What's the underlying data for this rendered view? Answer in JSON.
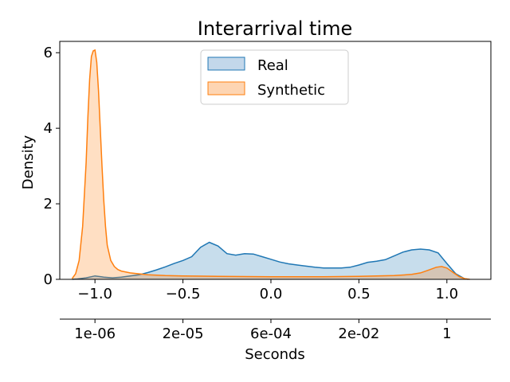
{
  "chart_data": {
    "type": "area",
    "title": "Interarrival time",
    "xlabel": "Seconds",
    "ylabel": "Density",
    "xlim": [
      -1.2,
      1.25
    ],
    "ylim": [
      0,
      6.3
    ],
    "xticks": [
      -1.0,
      -0.5,
      0.0,
      0.5,
      1.0
    ],
    "xtick_labels": [
      "−1.0",
      "−0.5",
      "0.0",
      "0.5",
      "1.0"
    ],
    "yticks": [
      0,
      2,
      4,
      6
    ],
    "ytick_labels": [
      "0",
      "2",
      "4",
      "6"
    ],
    "secondary_xaxis": {
      "position": "bottom",
      "ticks": [
        -1.0,
        -0.5,
        0.0,
        0.5,
        1.0
      ],
      "tick_labels": [
        "1e-06",
        "2e-05",
        "6e-04",
        "2e-02",
        "1"
      ]
    },
    "grid": false,
    "legend_position": "upper center",
    "series": [
      {
        "name": "Real",
        "color": "#1f77b4",
        "fill": "#c3d7ea",
        "x": [
          -1.13,
          -1.1,
          -1.05,
          -1.0,
          -0.95,
          -0.9,
          -0.85,
          -0.8,
          -0.75,
          -0.7,
          -0.65,
          -0.6,
          -0.55,
          -0.5,
          -0.45,
          -0.4,
          -0.35,
          -0.3,
          -0.25,
          -0.2,
          -0.15,
          -0.1,
          -0.05,
          0.0,
          0.05,
          0.1,
          0.15,
          0.2,
          0.25,
          0.3,
          0.35,
          0.4,
          0.45,
          0.5,
          0.55,
          0.6,
          0.65,
          0.7,
          0.75,
          0.8,
          0.85,
          0.9,
          0.95,
          1.0,
          1.05,
          1.1,
          1.12
        ],
        "y": [
          0.0,
          0.01,
          0.04,
          0.09,
          0.06,
          0.04,
          0.06,
          0.09,
          0.12,
          0.18,
          0.25,
          0.33,
          0.42,
          0.5,
          0.6,
          0.85,
          0.98,
          0.88,
          0.68,
          0.64,
          0.68,
          0.67,
          0.6,
          0.53,
          0.46,
          0.41,
          0.38,
          0.35,
          0.32,
          0.3,
          0.3,
          0.3,
          0.32,
          0.38,
          0.45,
          0.48,
          0.52,
          0.62,
          0.72,
          0.78,
          0.8,
          0.78,
          0.7,
          0.42,
          0.15,
          0.02,
          0.0
        ]
      },
      {
        "name": "Synthetic",
        "color": "#ff7f0e",
        "fill": "#fdd5b3",
        "x": [
          -1.13,
          -1.11,
          -1.09,
          -1.07,
          -1.05,
          -1.04,
          -1.03,
          -1.02,
          -1.01,
          -1.0,
          -0.99,
          -0.98,
          -0.97,
          -0.96,
          -0.95,
          -0.94,
          -0.93,
          -0.91,
          -0.89,
          -0.87,
          -0.85,
          -0.8,
          -0.7,
          -0.6,
          -0.5,
          -0.3,
          0.0,
          0.3,
          0.5,
          0.7,
          0.8,
          0.85,
          0.9,
          0.94,
          0.97,
          1.0,
          1.03,
          1.07,
          1.1,
          1.13
        ],
        "y": [
          0.02,
          0.15,
          0.5,
          1.4,
          3.1,
          4.3,
          5.3,
          5.9,
          6.05,
          6.07,
          5.75,
          5.0,
          4.0,
          3.0,
          2.1,
          1.4,
          0.9,
          0.5,
          0.34,
          0.26,
          0.22,
          0.17,
          0.12,
          0.1,
          0.09,
          0.08,
          0.07,
          0.07,
          0.08,
          0.1,
          0.13,
          0.17,
          0.25,
          0.32,
          0.34,
          0.3,
          0.2,
          0.07,
          0.02,
          0.0
        ]
      }
    ]
  }
}
